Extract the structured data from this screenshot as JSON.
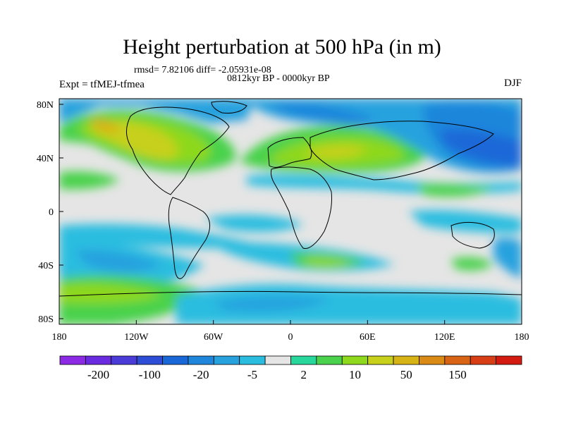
{
  "title": "Height perturbation at 500 hPa (in m)",
  "stats_line": "rmsd= 7.82106 diff= -2.05931e-08",
  "period": "0812kyr BP - 0000kyr BP",
  "experiment": "Expt = tfMEJ-tfmea",
  "season": "DJF",
  "lat_ticks": [
    "80N",
    "40N",
    "0",
    "40S",
    "80S"
  ],
  "lon_ticks": [
    "180",
    "120W",
    "60W",
    "0",
    "60E",
    "120E",
    "180"
  ],
  "colorbar": {
    "colors": [
      "#8c2ae6",
      "#6a2be0",
      "#4b3bd9",
      "#2d4dd6",
      "#1a67d8",
      "#1f86db",
      "#27a2df",
      "#2bbde0",
      "#e5e5e5",
      "#28d79b",
      "#4ad24c",
      "#8ed81d",
      "#c7d01a",
      "#d8b316",
      "#d98b16",
      "#d96314",
      "#d83e16",
      "#d41b12"
    ],
    "labels": [
      "-200",
      "-100",
      "-20",
      "-5",
      "2",
      "10",
      "50",
      "150"
    ]
  },
  "colors": {
    "land_outline": "#000000",
    "neutral": "#e5e5e5"
  }
}
